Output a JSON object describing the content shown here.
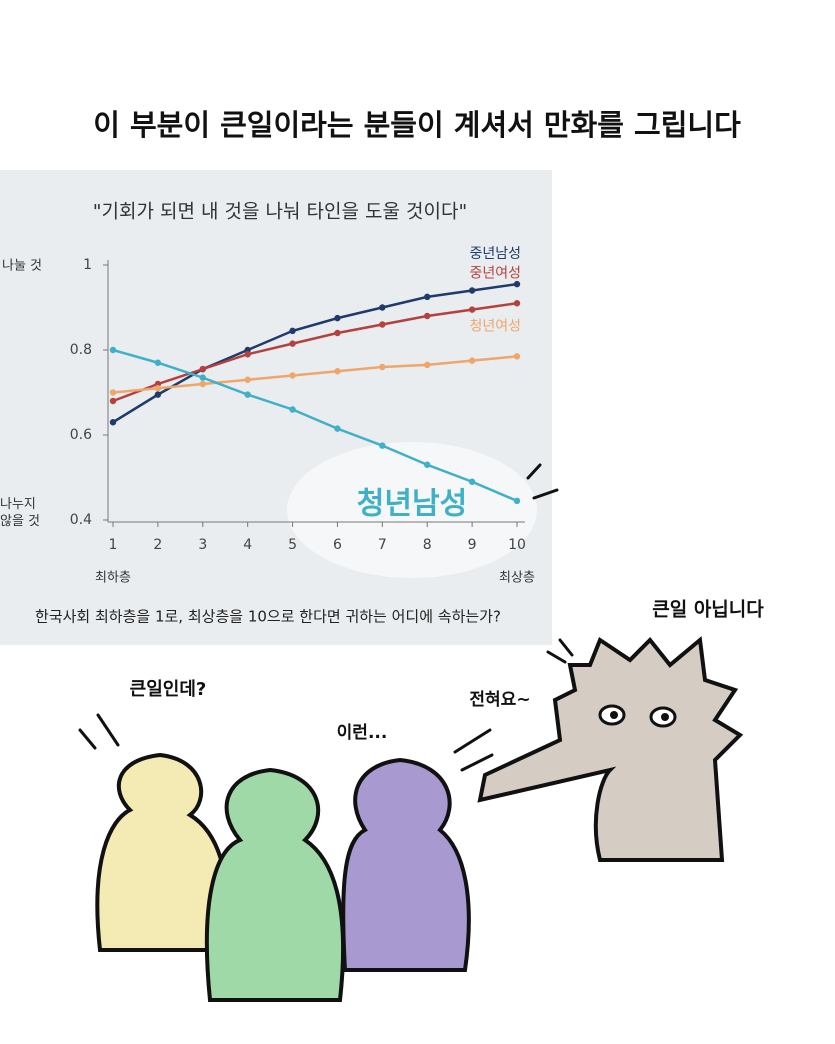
{
  "header": {
    "title": "이 부분이 큰일이라는 분들이 계셔서 만화를 그립니다"
  },
  "chart_data": {
    "type": "line",
    "title": "\"기회가 되면 내 것을 나눠 타인을 도울 것이다\"",
    "y_top_label": "나눌 것",
    "y_bottom_label": "나누지 않을 것",
    "x_left_label": "최하층",
    "x_right_label": "최상층",
    "note": "한국사회 최하층을 1로, 최상층을 10으로 한다면 귀하는 어디에 속하는가?",
    "x": [
      1,
      2,
      3,
      4,
      5,
      6,
      7,
      8,
      9,
      10
    ],
    "xlim": [
      1,
      10
    ],
    "xticks": [
      1,
      2,
      3,
      4,
      5,
      6,
      7,
      8,
      9,
      10
    ],
    "ylim": [
      0.4,
      1
    ],
    "yticks": [
      0.4,
      0.6,
      0.8,
      1
    ],
    "series": [
      {
        "name": "중년남성",
        "color": "#1f3a6b",
        "values": [
          0.63,
          0.695,
          0.755,
          0.8,
          0.845,
          0.875,
          0.9,
          0.925,
          0.94,
          0.955
        ]
      },
      {
        "name": "중년여성",
        "color": "#b5413f",
        "values": [
          0.68,
          0.72,
          0.755,
          0.79,
          0.815,
          0.84,
          0.86,
          0.88,
          0.895,
          0.91
        ]
      },
      {
        "name": "청년여성",
        "color": "#eea66a",
        "values": [
          0.7,
          0.71,
          0.72,
          0.73,
          0.74,
          0.75,
          0.76,
          0.765,
          0.775,
          0.785
        ]
      },
      {
        "name": "청년남성",
        "color": "#3fb0c8",
        "values": [
          0.8,
          0.77,
          0.735,
          0.695,
          0.66,
          0.615,
          0.575,
          0.53,
          0.49,
          0.445
        ]
      }
    ]
  },
  "speech": {
    "cat": "큰일 아닙니다",
    "cat_small": "전혀요~",
    "yellow": "큰일인데?",
    "purple": "이런..."
  }
}
